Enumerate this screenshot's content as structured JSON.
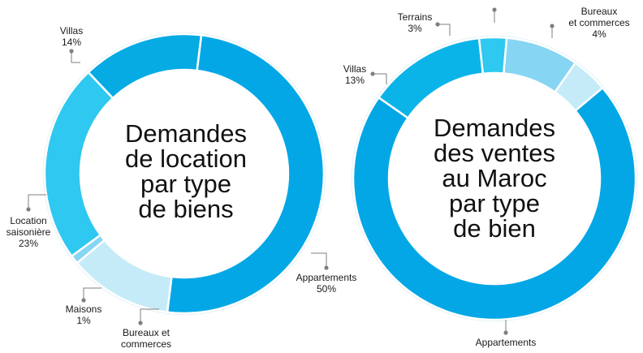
{
  "colors": {
    "dot": "#7f7f7f",
    "text": "#111111",
    "gap": "#ffffff"
  },
  "chart_data": [
    {
      "type": "pie",
      "title_lines": [
        "Demandes",
        "de location",
        "par type",
        "de biens"
      ],
      "slices": [
        {
          "label_lines": [
            "Appartements",
            "50%"
          ],
          "value": 50,
          "color": "#03a7e6"
        },
        {
          "label_lines": [
            "Bureaux et",
            "commerces"
          ],
          "value": 12,
          "color": "#c6ebf8"
        },
        {
          "label_lines": [
            "Maisons",
            "1%"
          ],
          "value": 1,
          "color": "#86d5f3"
        },
        {
          "label_lines": [
            "Location",
            "saisonière",
            "23%"
          ],
          "value": 23,
          "color": "#2ec8f0"
        },
        {
          "label_lines": [
            "Villas",
            "14%"
          ],
          "value": 14,
          "color": "#07abe4"
        }
      ]
    },
    {
      "type": "pie",
      "title_lines": [
        "Demandes",
        "des ventes",
        "au Maroc",
        "par type",
        "de bien"
      ],
      "slices": [
        {
          "label_lines": [
            "Appartements"
          ],
          "value": 68,
          "color": "#03a7e6"
        },
        {
          "label_lines": [
            "Villas",
            "13%"
          ],
          "value": 13,
          "color": "#0ab4e9"
        },
        {
          "label_lines": [
            "Terrains",
            "3%"
          ],
          "value": 3,
          "color": "#2ec8f0"
        },
        {
          "label_lines": [],
          "value": 8,
          "color": "#86d5f3"
        },
        {
          "label_lines": [
            "Bureaux",
            "et commerces",
            "4%"
          ],
          "value": 4,
          "color": "#c6ebf8"
        }
      ]
    }
  ]
}
